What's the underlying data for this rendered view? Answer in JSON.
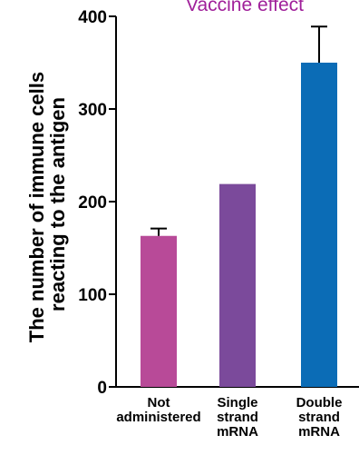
{
  "chart_data": {
    "type": "bar",
    "title": "Vaccine effect",
    "ylabel_lines": [
      "The number of immune cells",
      "reacting to the antigen"
    ],
    "categories": [
      [
        "Not",
        "administered"
      ],
      [
        "Single",
        "strand",
        "mRNA"
      ],
      [
        "Double",
        "strand",
        "mRNA"
      ]
    ],
    "values": [
      163,
      219,
      350
    ],
    "errors_upper": [
      171,
      null,
      389
    ],
    "colors": [
      "#b84a98",
      "#7b4a9b",
      "#0b6cb6"
    ],
    "title_color": "#a0209a",
    "yticks": [
      0,
      100,
      200,
      300,
      400
    ],
    "ylim": [
      0,
      400
    ]
  }
}
